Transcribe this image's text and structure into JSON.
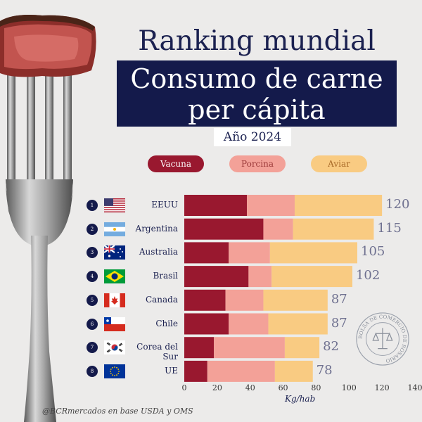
{
  "header": {
    "line1": "Ranking mundial",
    "line2": "Consumo de carne",
    "line3": "per cápita",
    "year": "Año 2024"
  },
  "legend": [
    {
      "label": "Vacuna",
      "color": "#99182f",
      "text_color": "#ffffff"
    },
    {
      "label": "Porcina",
      "color": "#f3a198",
      "text_color": "#9c3a3a"
    },
    {
      "label": "Aviar",
      "color": "#f9cb82",
      "text_color": "#a86a28"
    }
  ],
  "chart_data": {
    "type": "bar",
    "orientation": "horizontal",
    "stacked": true,
    "categories": [
      "EEUU",
      "Argentina",
      "Australia",
      "Brasil",
      "Canada",
      "Chile",
      "Corea del Sur",
      "UE"
    ],
    "ranks": [
      "1",
      "2",
      "3",
      "4",
      "5",
      "6",
      "7",
      "8"
    ],
    "series": [
      {
        "name": "Vacuna",
        "values": [
          38,
          48,
          27,
          39,
          25,
          27,
          18,
          14
        ]
      },
      {
        "name": "Porcina",
        "values": [
          29,
          18,
          25,
          14,
          23,
          24,
          43,
          41
        ]
      },
      {
        "name": "Aviar",
        "values": [
          53,
          49,
          53,
          49,
          39,
          36,
          21,
          23
        ]
      }
    ],
    "totals": [
      "120",
      "115",
      "105",
      "102",
      "87",
      "87",
      "82",
      "78"
    ],
    "xlabel": "Kg/hab",
    "xlim": [
      0,
      140
    ],
    "xticks": [
      "0",
      "20",
      "40",
      "60",
      "80",
      "100",
      "120",
      "140"
    ],
    "grid": false,
    "legend_position": "top"
  },
  "flags": [
    "flag-usa-icon",
    "flag-argentina-icon",
    "flag-australia-icon",
    "flag-brazil-icon",
    "flag-canada-icon",
    "flag-chile-icon",
    "flag-south-korea-icon",
    "flag-eu-icon"
  ],
  "source": "@BCRmercados en base  USDA y OMS",
  "seal_text": "BOLSA DE COMERCIO DE ROSARIO"
}
